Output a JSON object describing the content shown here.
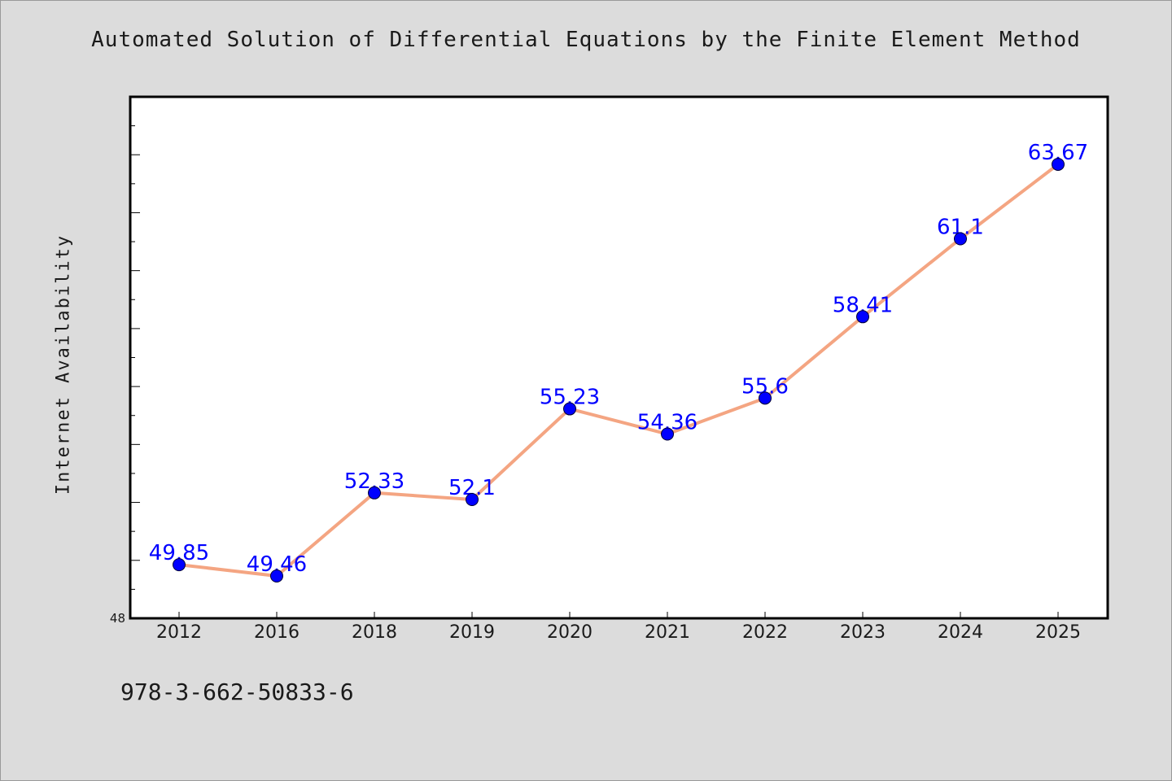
{
  "page": {
    "title": "Automated Solution of Differential Equations by the Finite Element Method",
    "footer_text": "978-3-662-50833-6",
    "background_color": "#dcdcdc"
  },
  "chart_data": {
    "type": "line",
    "title": "Automated Solution of Differential Equations by the Finite Element Method",
    "xlabel": "",
    "ylabel": "Internet Availability",
    "categories": [
      "2012",
      "2016",
      "2018",
      "2019",
      "2020",
      "2021",
      "2022",
      "2023",
      "2024",
      "2025"
    ],
    "series": [
      {
        "values": [
          49.85,
          49.46,
          52.33,
          52.1,
          55.23,
          54.36,
          55.6,
          58.41,
          61.1,
          63.67
        ],
        "line_color": "#f4a582",
        "marker_color": "#0000ff",
        "label_color": "#0000ff"
      }
    ],
    "data_labels": [
      "49.85",
      "49.46",
      "52.33",
      "52.1",
      "55.23",
      "54.36",
      "55.6",
      "58.41",
      "61.1",
      "63.67"
    ],
    "ylim": [
      48,
      66
    ],
    "y_tick_labels": [
      "48"
    ],
    "y_minor_tick_step": 1,
    "grid": false,
    "legend": "none",
    "plot_background": "#ffffff"
  }
}
